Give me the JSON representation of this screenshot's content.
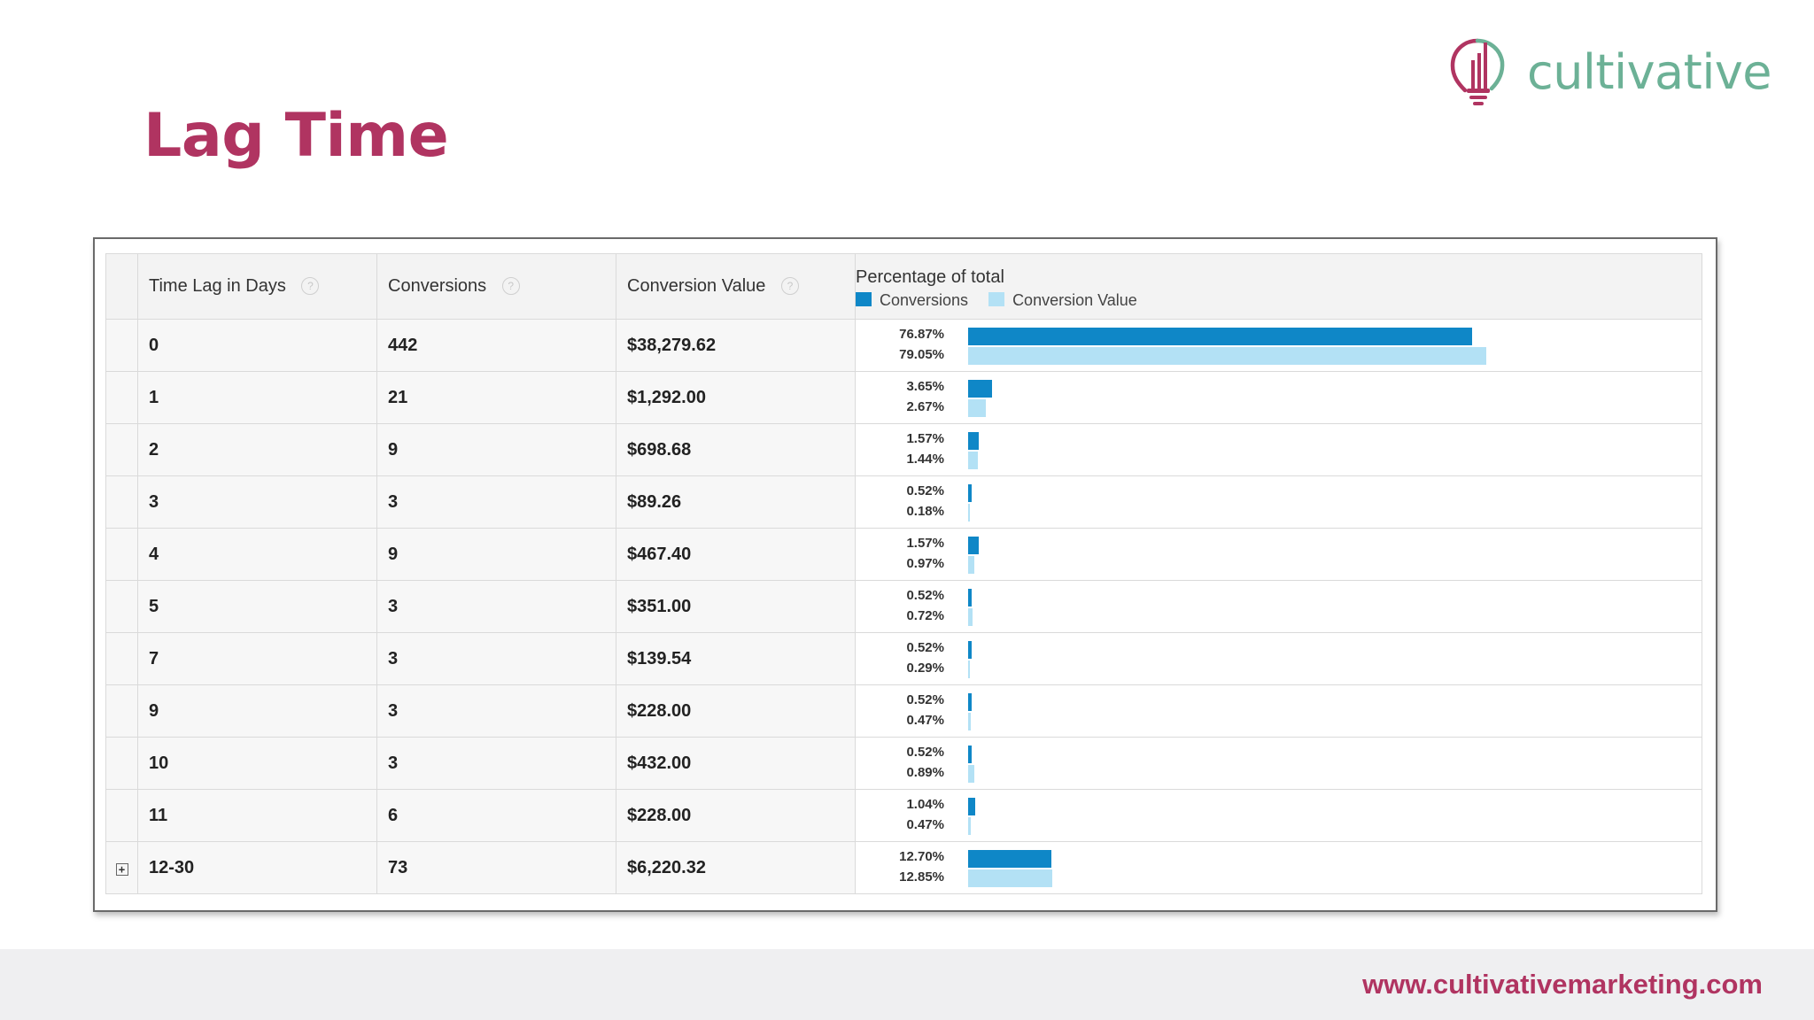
{
  "title": "Lag Time",
  "logo": {
    "text": "cultivative",
    "icon": "lightbulb-icon",
    "colors": {
      "bulb": "#b03461",
      "text": "#6cb196"
    }
  },
  "footer": {
    "url": "www.cultivativemarketing.com"
  },
  "colors": {
    "conversions": "#0f87c7",
    "conversion_value": "#b3e1f5",
    "accent": "#b03461"
  },
  "table": {
    "headers": {
      "time_lag": "Time Lag in Days",
      "conversions": "Conversions",
      "conversion_value": "Conversion Value",
      "percentage": "Percentage of total"
    },
    "help_glyph": "?",
    "expand_glyph": "+",
    "legend": {
      "conversions": "Conversions",
      "conversion_value": "Conversion Value"
    },
    "rows": [
      {
        "days": "0",
        "conversions": "442",
        "value": "$38,279.62",
        "conv_pct": "76.87%",
        "val_pct": "79.05%",
        "conv_pct_num": 76.87,
        "val_pct_num": 79.05
      },
      {
        "days": "1",
        "conversions": "21",
        "value": "$1,292.00",
        "conv_pct": "3.65%",
        "val_pct": "2.67%",
        "conv_pct_num": 3.65,
        "val_pct_num": 2.67
      },
      {
        "days": "2",
        "conversions": "9",
        "value": "$698.68",
        "conv_pct": "1.57%",
        "val_pct": "1.44%",
        "conv_pct_num": 1.57,
        "val_pct_num": 1.44
      },
      {
        "days": "3",
        "conversions": "3",
        "value": "$89.26",
        "conv_pct": "0.52%",
        "val_pct": "0.18%",
        "conv_pct_num": 0.52,
        "val_pct_num": 0.18
      },
      {
        "days": "4",
        "conversions": "9",
        "value": "$467.40",
        "conv_pct": "1.57%",
        "val_pct": "0.97%",
        "conv_pct_num": 1.57,
        "val_pct_num": 0.97
      },
      {
        "days": "5",
        "conversions": "3",
        "value": "$351.00",
        "conv_pct": "0.52%",
        "val_pct": "0.72%",
        "conv_pct_num": 0.52,
        "val_pct_num": 0.72
      },
      {
        "days": "7",
        "conversions": "3",
        "value": "$139.54",
        "conv_pct": "0.52%",
        "val_pct": "0.29%",
        "conv_pct_num": 0.52,
        "val_pct_num": 0.29
      },
      {
        "days": "9",
        "conversions": "3",
        "value": "$228.00",
        "conv_pct": "0.52%",
        "val_pct": "0.47%",
        "conv_pct_num": 0.52,
        "val_pct_num": 0.47
      },
      {
        "days": "10",
        "conversions": "3",
        "value": "$432.00",
        "conv_pct": "0.52%",
        "val_pct": "0.89%",
        "conv_pct_num": 0.52,
        "val_pct_num": 0.89
      },
      {
        "days": "11",
        "conversions": "6",
        "value": "$228.00",
        "conv_pct": "1.04%",
        "val_pct": "0.47%",
        "conv_pct_num": 1.04,
        "val_pct_num": 0.47
      },
      {
        "days": "12-30",
        "conversions": "73",
        "value": "$6,220.32",
        "conv_pct": "12.70%",
        "val_pct": "12.85%",
        "conv_pct_num": 12.7,
        "val_pct_num": 12.85,
        "expandable": true
      }
    ]
  }
}
